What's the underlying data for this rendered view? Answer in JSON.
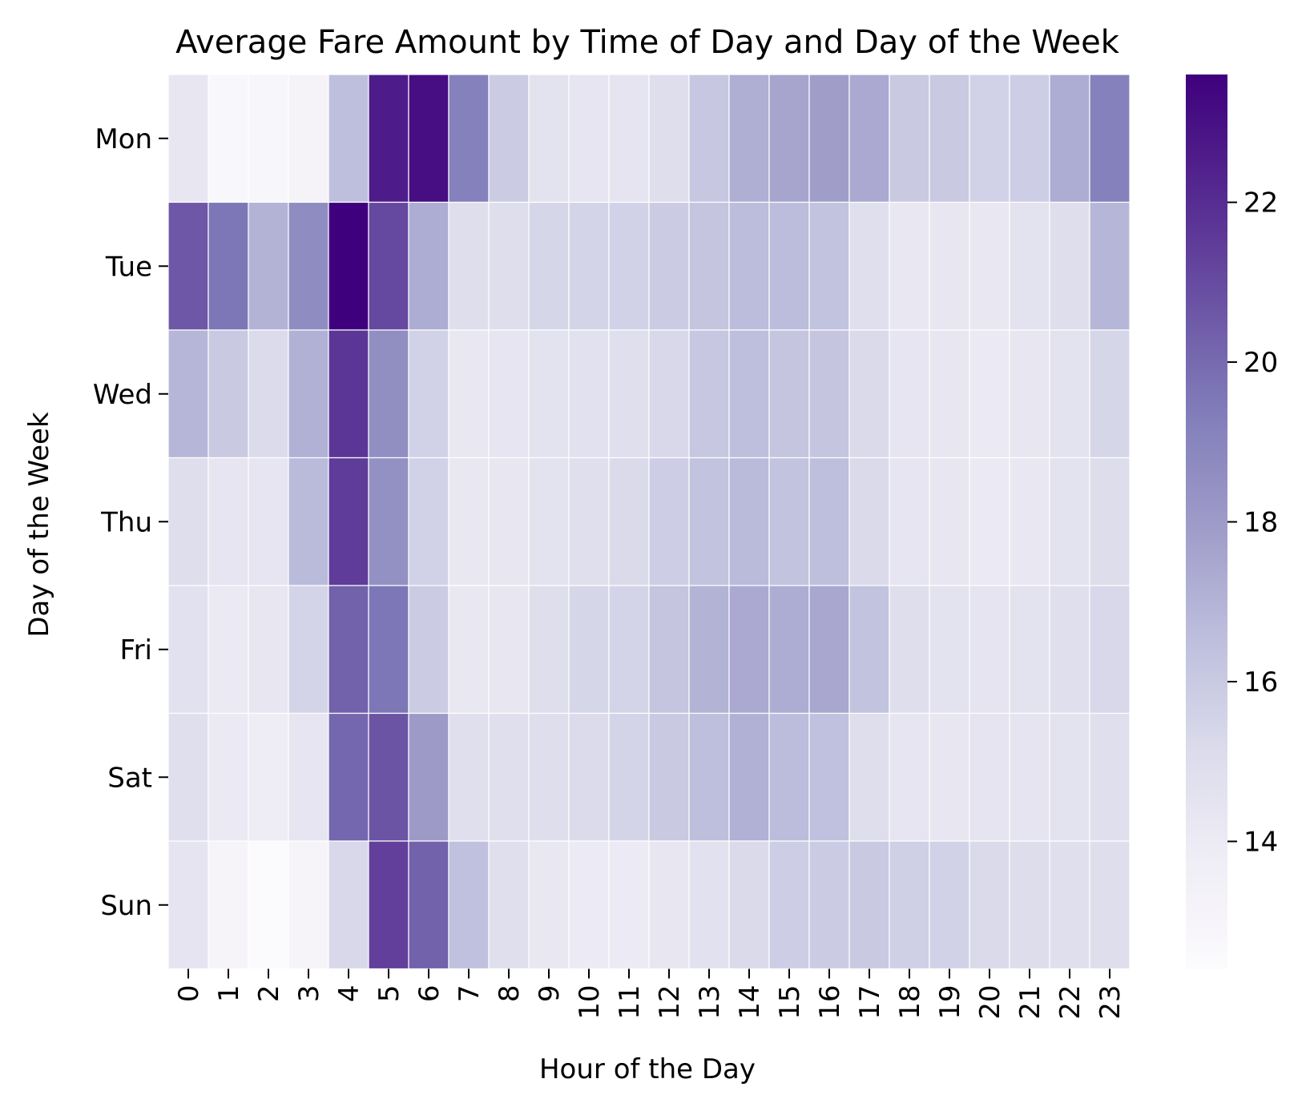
{
  "chart_data": {
    "type": "heatmap",
    "title": "Average Fare Amount by Time of Day and Day of the Week",
    "xlabel": "Hour of the Day",
    "ylabel": "Day of the Week",
    "x_categories": [
      "0",
      "1",
      "2",
      "3",
      "4",
      "5",
      "6",
      "7",
      "8",
      "9",
      "10",
      "11",
      "12",
      "13",
      "14",
      "15",
      "16",
      "17",
      "18",
      "19",
      "20",
      "21",
      "22",
      "23"
    ],
    "y_categories": [
      "Mon",
      "Tue",
      "Wed",
      "Thu",
      "Fri",
      "Sat",
      "Sun"
    ],
    "values": [
      [
        14.3,
        12.8,
        12.9,
        13.2,
        16.5,
        22.6,
        23.1,
        19.2,
        15.9,
        14.6,
        14.4,
        14.5,
        14.9,
        16.1,
        17.2,
        17.6,
        17.9,
        17.4,
        16.0,
        16.0,
        15.6,
        15.8,
        17.3,
        19.2
      ],
      [
        20.6,
        19.6,
        17.0,
        18.7,
        23.6,
        21.1,
        17.3,
        14.9,
        14.9,
        15.4,
        15.5,
        15.6,
        15.9,
        16.2,
        16.6,
        16.6,
        16.3,
        14.8,
        14.2,
        14.3,
        14.2,
        14.6,
        14.9,
        16.9
      ],
      [
        16.9,
        16.0,
        15.1,
        17.1,
        21.7,
        18.6,
        15.6,
        14.2,
        14.4,
        14.6,
        14.7,
        14.8,
        15.3,
        16.1,
        16.5,
        16.2,
        16.2,
        15.2,
        14.4,
        14.3,
        14.1,
        14.3,
        14.6,
        15.4
      ],
      [
        14.9,
        14.4,
        14.4,
        16.7,
        21.5,
        18.5,
        15.6,
        14.2,
        14.3,
        14.6,
        14.8,
        15.2,
        15.8,
        16.3,
        16.7,
        16.3,
        16.5,
        15.2,
        14.4,
        14.3,
        14.1,
        14.2,
        14.6,
        15.0
      ],
      [
        14.7,
        14.1,
        14.3,
        15.5,
        20.3,
        19.6,
        15.9,
        14.2,
        14.3,
        14.9,
        15.4,
        15.5,
        16.2,
        17.0,
        17.4,
        17.3,
        17.5,
        16.3,
        14.9,
        14.6,
        14.5,
        14.6,
        14.8,
        15.3
      ],
      [
        14.8,
        14.1,
        13.9,
        14.4,
        20.1,
        20.7,
        18.0,
        14.8,
        14.8,
        14.9,
        15.1,
        15.5,
        16.0,
        16.5,
        17.1,
        16.6,
        16.4,
        14.9,
        14.4,
        14.3,
        14.5,
        14.5,
        14.6,
        14.8
      ],
      [
        14.5,
        13.1,
        12.5,
        13.1,
        15.3,
        21.4,
        20.3,
        16.4,
        14.8,
        14.2,
        14.0,
        14.0,
        14.3,
        14.7,
        15.2,
        15.8,
        15.9,
        16.0,
        15.7,
        15.6,
        15.2,
        15.0,
        14.8,
        14.9
      ]
    ],
    "vmin": 12.4,
    "vmax": 23.6,
    "colormap": "Purples",
    "colorbar_ticks": [
      14,
      16,
      18,
      20,
      22
    ],
    "colorbar_tick_labels": [
      "14",
      "16",
      "18",
      "20",
      "22"
    ]
  }
}
